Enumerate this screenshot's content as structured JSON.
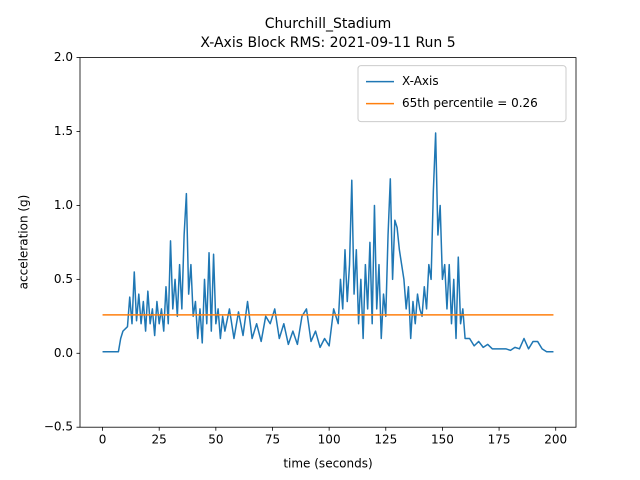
{
  "chart_data": {
    "type": "line",
    "title": "Churchill_Stadium",
    "subtitle": "X-Axis Block RMS: 2021-09-11 Run 5",
    "x_label": "time (seconds)",
    "y_label": "acceleration (g)",
    "xlim": [
      -9.95,
      208.95
    ],
    "ylim": [
      -0.5,
      2.0
    ],
    "xticks": [
      0,
      25,
      50,
      75,
      100,
      125,
      150,
      175,
      200
    ],
    "yticks": [
      {
        "value": -0.5,
        "label": "−0.5"
      },
      {
        "value": 0,
        "label": "0.0"
      },
      0.5,
      {
        "value": 1,
        "label": "1.0"
      },
      1.5,
      {
        "value": 2,
        "label": "2.0"
      }
    ],
    "grid": false,
    "legend": "upper right",
    "series": [
      {
        "name": "X-Axis",
        "color": "#1f77b4",
        "x": [
          0,
          4,
          7,
          8,
          9,
          11,
          12,
          13,
          14,
          15,
          16,
          17,
          18,
          19,
          20,
          21,
          22,
          23,
          24,
          25,
          26,
          27,
          28,
          29,
          30,
          31,
          32,
          33,
          34,
          35,
          36,
          37,
          38,
          39,
          40,
          41,
          42,
          43,
          44,
          45,
          46,
          47,
          48,
          49,
          50,
          51,
          52,
          53,
          54,
          56,
          58,
          60,
          62,
          64,
          66,
          68,
          70,
          72,
          74,
          76,
          78,
          80,
          82,
          84,
          86,
          88,
          90,
          92,
          94,
          96,
          98,
          100,
          102,
          104,
          105,
          106,
          107,
          108,
          109,
          110,
          111,
          112,
          113,
          114,
          115,
          116,
          117,
          118,
          119,
          120,
          121,
          122,
          123,
          124,
          125,
          126,
          127,
          128,
          129,
          130,
          131,
          132,
          133,
          134,
          135,
          136,
          137,
          138,
          139,
          140,
          141,
          142,
          143,
          144,
          145,
          146,
          147,
          148,
          149,
          150,
          151,
          152,
          153,
          154,
          155,
          156,
          157,
          158,
          159,
          160,
          162,
          164,
          166,
          168,
          170,
          172,
          175,
          178,
          180,
          182,
          184,
          186,
          188,
          190,
          192,
          194,
          196,
          199
        ],
        "values": [
          0.01,
          0.01,
          0.01,
          0.1,
          0.15,
          0.18,
          0.38,
          0.2,
          0.55,
          0.22,
          0.4,
          0.2,
          0.35,
          0.15,
          0.42,
          0.2,
          0.3,
          0.12,
          0.35,
          0.2,
          0.3,
          0.15,
          0.45,
          0.2,
          0.76,
          0.3,
          0.5,
          0.25,
          0.6,
          0.3,
          0.8,
          1.08,
          0.4,
          0.6,
          0.25,
          0.35,
          0.1,
          0.3,
          0.07,
          0.5,
          0.2,
          0.68,
          0.15,
          0.67,
          0.2,
          0.3,
          0.1,
          0.25,
          0.15,
          0.3,
          0.1,
          0.28,
          0.12,
          0.35,
          0.1,
          0.2,
          0.08,
          0.25,
          0.2,
          0.3,
          0.1,
          0.2,
          0.06,
          0.15,
          0.06,
          0.25,
          0.3,
          0.08,
          0.15,
          0.04,
          0.1,
          0.05,
          0.3,
          0.2,
          0.5,
          0.3,
          0.7,
          0.35,
          0.6,
          1.17,
          0.4,
          0.7,
          0.2,
          0.5,
          0.1,
          0.6,
          0.3,
          0.75,
          0.2,
          1.0,
          0.3,
          0.6,
          0.1,
          0.4,
          0.25,
          0.8,
          1.18,
          0.5,
          0.9,
          0.85,
          0.7,
          0.6,
          0.5,
          0.3,
          0.45,
          0.1,
          0.35,
          0.2,
          0.4,
          0.3,
          0.25,
          0.45,
          0.3,
          0.6,
          0.5,
          1.1,
          1.49,
          0.8,
          1.0,
          0.5,
          0.6,
          0.3,
          0.6,
          0.2,
          0.5,
          0.1,
          0.65,
          0.2,
          0.3,
          0.1,
          0.1,
          0.05,
          0.08,
          0.04,
          0.06,
          0.03,
          0.03,
          0.03,
          0.02,
          0.04,
          0.03,
          0.1,
          0.03,
          0.08,
          0.08,
          0.03,
          0.01,
          0.01
        ]
      },
      {
        "name": "65th percentile = 0.26",
        "color": "#ff7f0e",
        "x": [
          0,
          199
        ],
        "values": [
          0.26,
          0.26
        ]
      }
    ]
  }
}
